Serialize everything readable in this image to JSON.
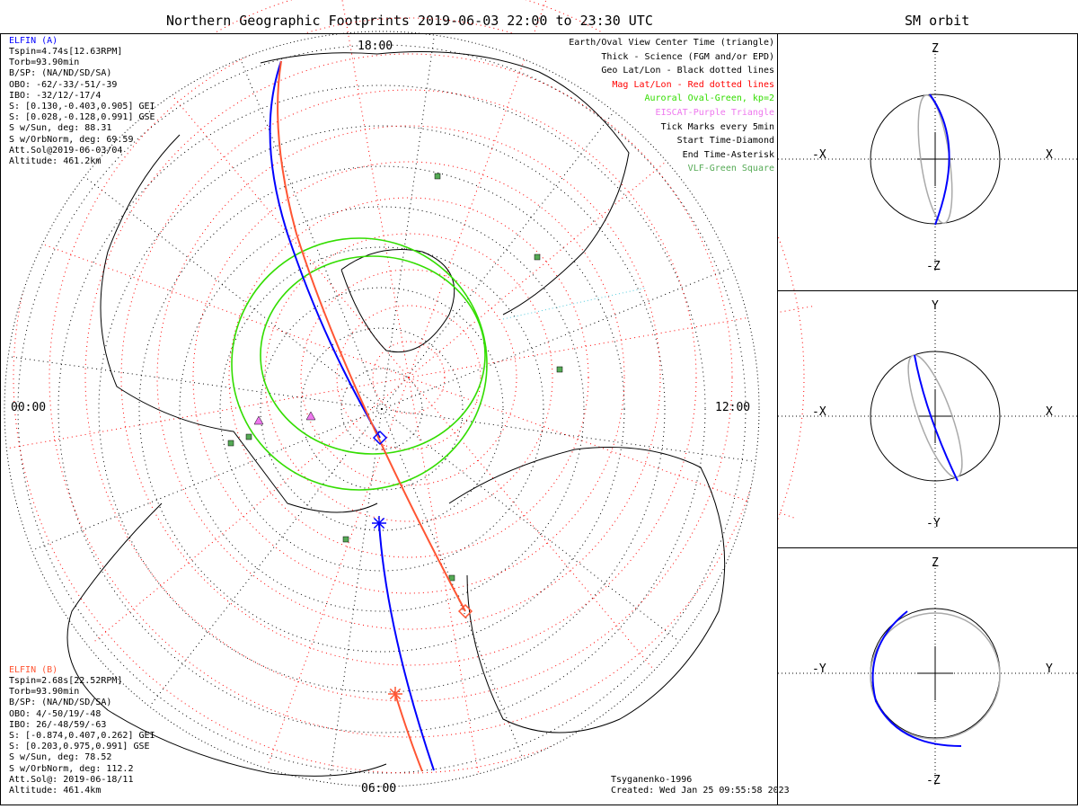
{
  "main": {
    "title": "Northern Geographic Footprints 2019-06-03 22:00 to 23:30 UTC",
    "mlt_labels": {
      "top": "18:00",
      "left": "00:00",
      "right": "12:00",
      "bottom": "06:00"
    }
  },
  "side": {
    "title": "SM orbit",
    "panels": [
      {
        "up": "Z",
        "down": "-Z",
        "left": "-X",
        "right": "X"
      },
      {
        "up": "Y",
        "down": "-Y",
        "left": "-X",
        "right": "X"
      },
      {
        "up": "Z",
        "down": "-Z",
        "left": "-Y",
        "right": "Y"
      }
    ]
  },
  "elfin_a": {
    "name": "ELFIN (A)",
    "color": "#0000ff",
    "lines": [
      "Tspin=4.74s[12.63RPM]",
      "Torb=93.90min",
      "B/SP: (NA/ND/SD/SA)",
      "OBO: -62/-33/-51/-39",
      "IBO: -32/12/-17/4",
      "S: [0.130,-0.403,0.905] GEI",
      "S: [0.028,-0.128,0.991] GSE",
      "S w/Sun, deg: 88.31",
      "S w/OrbNorm, deg: 69.59",
      "Att.Sol@2019-06-03/04",
      "Altitude: 461.2km"
    ]
  },
  "elfin_b": {
    "name": "ELFIN (B)",
    "color": "#ff5533",
    "lines": [
      "Tspin=2.68s[22.52RPM]",
      "Torb=93.90min",
      "B/SP: (NA/ND/SD/SA)",
      "OBO: 4/-50/19/-48",
      "IBO: 26/-48/59/-63",
      "S: [-0.874,0.407,0.262] GEI",
      "S: [0.203,0.975,0.991] GSE",
      "S w/Sun, deg: 78.52",
      "S w/OrbNorm, deg: 112.2",
      "Att.Sol@: 2019-06-18/11",
      "Altitude: 461.4km"
    ]
  },
  "legend": [
    {
      "text": "Earth/Oval View Center Time (triangle)",
      "color": "#000000"
    },
    {
      "text": "Thick - Science (FGM and/or EPD)",
      "color": "#000000"
    },
    {
      "text": "Geo Lat/Lon - Black dotted lines",
      "color": "#000000"
    },
    {
      "text": "Mag Lat/Lon - Red dotted lines",
      "color": "#ff0000"
    },
    {
      "text": "Auroral Oval-Green, kp=2",
      "color": "#33dd00"
    },
    {
      "text": "EISCAT-Purple Triangle",
      "color": "#ee77ee"
    },
    {
      "text": "Tick Marks every 5min",
      "color": "#000000"
    },
    {
      "text": "Start Time-Diamond",
      "color": "#000000"
    },
    {
      "text": "End Time-Asterisk",
      "color": "#000000"
    },
    {
      "text": "VLF-Green Square",
      "color": "#55aa55"
    }
  ],
  "footer": {
    "model": "Tsyganenko-1996",
    "created": "Created: Wed Jan 25 09:55:58 2023"
  }
}
